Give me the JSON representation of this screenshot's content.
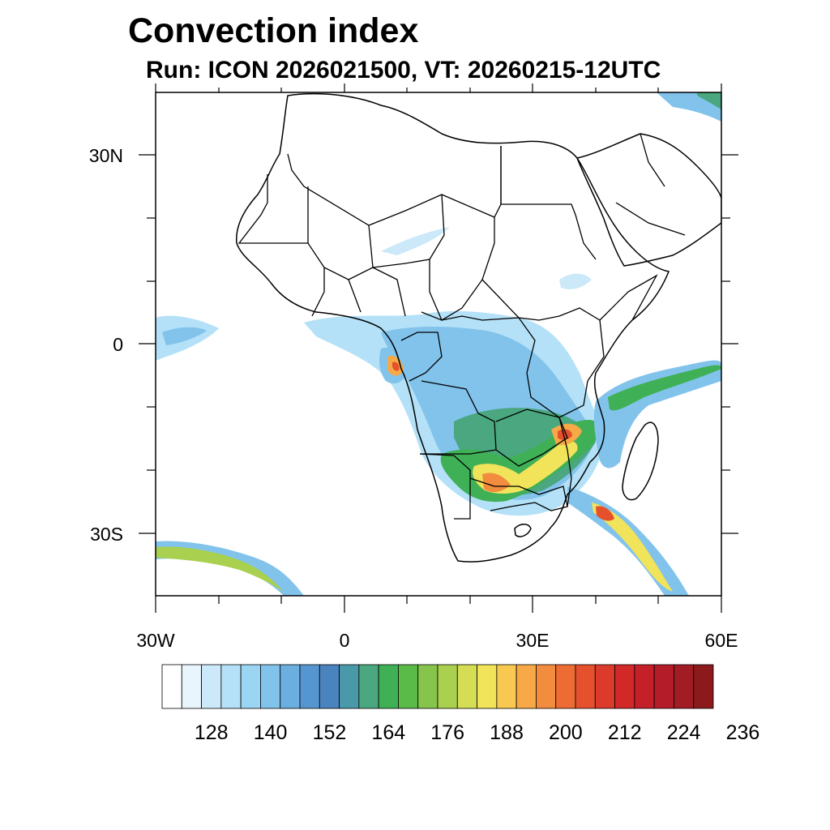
{
  "title": "Convection index",
  "subtitle": "Run: ICON 2026021500,  VT: 20260215-12UTC",
  "axes": {
    "lon_ticks": [
      {
        "lon": -30,
        "label": "30W"
      },
      {
        "lon": 0,
        "label": "0"
      },
      {
        "lon": 30,
        "label": "30E"
      },
      {
        "lon": 60,
        "label": "60E"
      }
    ],
    "lat_ticks": [
      {
        "lat": 30,
        "label": "30N"
      },
      {
        "lat": 0,
        "label": "0"
      },
      {
        "lat": -30,
        "label": "30S"
      }
    ],
    "lon_range": [
      -30,
      60
    ],
    "lat_range": [
      -40,
      40
    ]
  },
  "colorbar": {
    "colors": [
      "#ffffff",
      "#e9f5fc",
      "#cbe9f8",
      "#b4e1f7",
      "#9ad6f4",
      "#82c3ec",
      "#6bafe0",
      "#5696d0",
      "#4a84bf",
      "#4a99a8",
      "#4aa77f",
      "#40b057",
      "#5bbb49",
      "#86c44c",
      "#a9d04e",
      "#d4dd54",
      "#f1e35a",
      "#f8c850",
      "#f6a946",
      "#f28c3e",
      "#ed6c34",
      "#e5502d",
      "#dc3a2b",
      "#d22828",
      "#c51f2a",
      "#b31c28",
      "#a11c24",
      "#8c1a1d"
    ],
    "labels": [
      "128",
      "140",
      "152",
      "164",
      "176",
      "188",
      "200",
      "212",
      "224",
      "236"
    ]
  }
}
